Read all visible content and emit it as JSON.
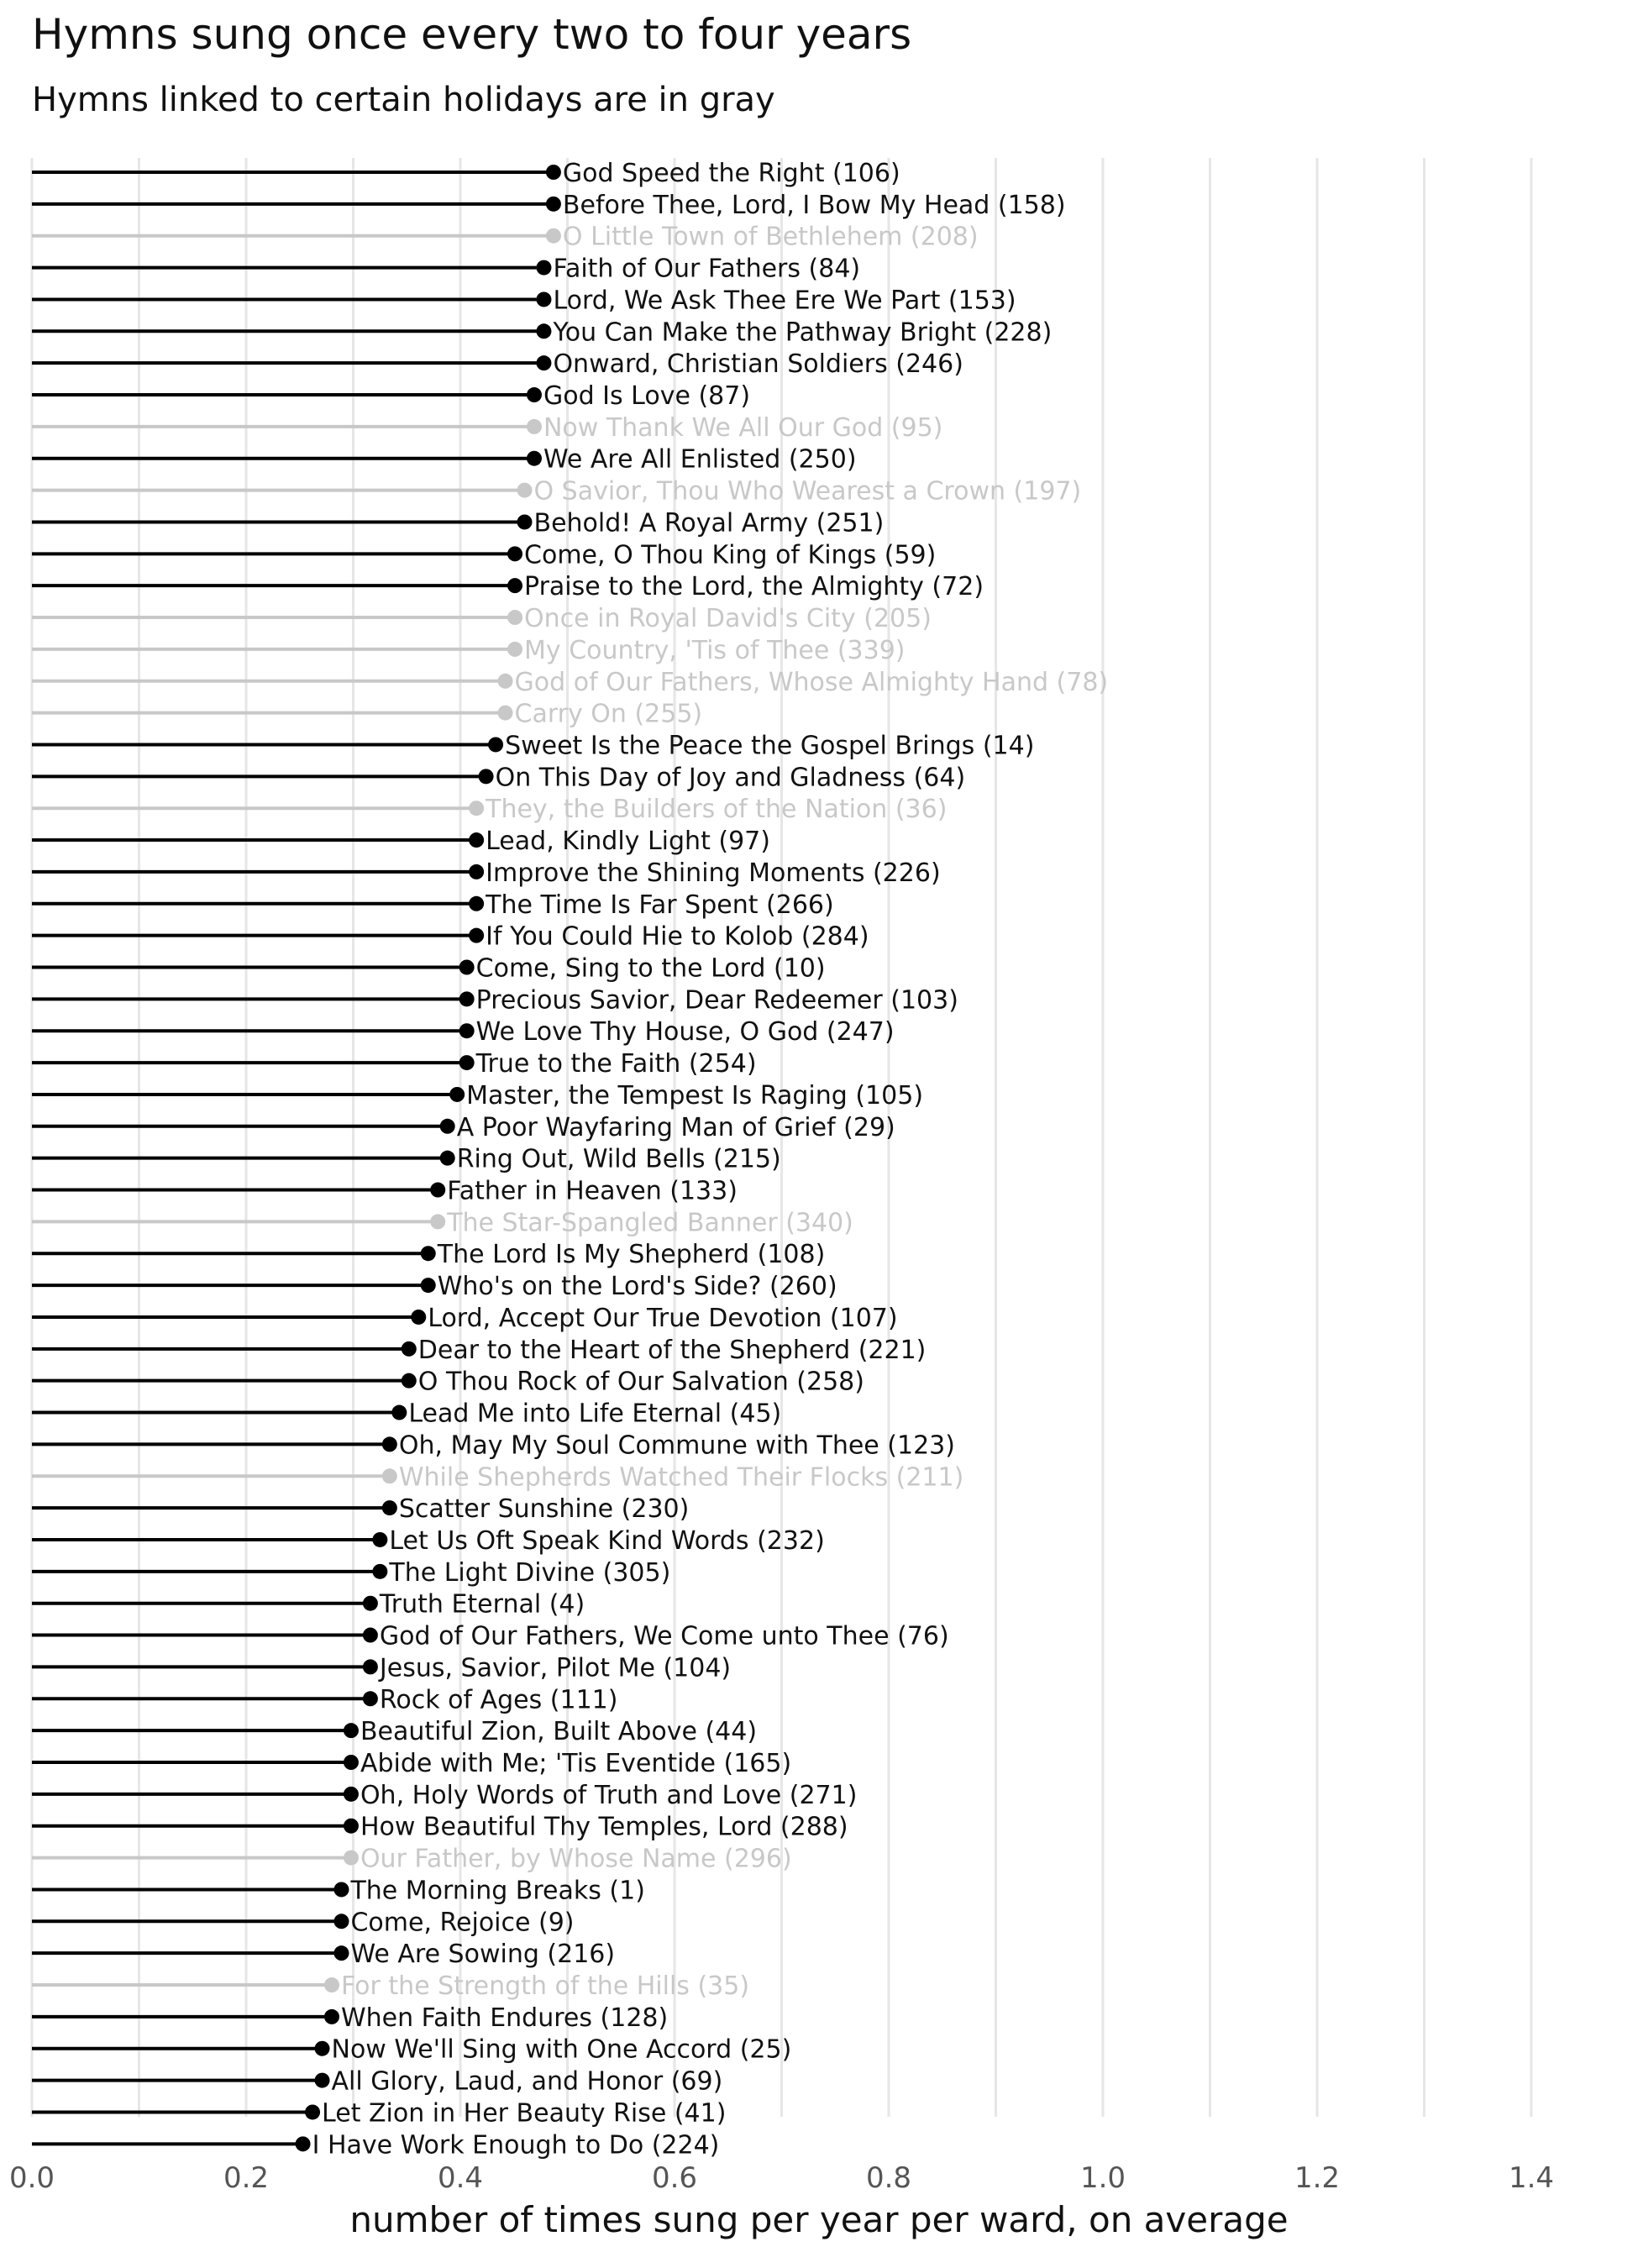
{
  "chart_data": {
    "type": "lollipop",
    "title": "Hymns sung once every two to four years",
    "subtitle": "Hymns linked to certain holidays are in gray",
    "xlabel": "number of times sung per year per ward, on average",
    "xlim": [
      0,
      1.45
    ],
    "x_ticks": [
      "0.0",
      "0.2",
      "0.4",
      "0.6",
      "0.8",
      "1.0",
      "1.2",
      "1.4"
    ],
    "x_tick_values": [
      0,
      0.2,
      0.4,
      0.6,
      0.8,
      1.0,
      1.2,
      1.4
    ],
    "colors": {
      "regular": "#000000",
      "holiday": "#c8c8c8",
      "grid": "#e6e6e6",
      "text": "#111111",
      "tick": "#555555"
    },
    "points": [
      {
        "label": "God Speed the Right (106)",
        "value": 0.487,
        "holiday": false
      },
      {
        "label": "Before Thee, Lord, I Bow My Head (158)",
        "value": 0.487,
        "holiday": false
      },
      {
        "label": "O Little Town of Bethlehem (208)",
        "value": 0.487,
        "holiday": true
      },
      {
        "label": "Faith of Our Fathers (84)",
        "value": 0.478,
        "holiday": false
      },
      {
        "label": "Lord, We Ask Thee Ere We Part (153)",
        "value": 0.478,
        "holiday": false
      },
      {
        "label": "You Can Make the Pathway Bright (228)",
        "value": 0.478,
        "holiday": false
      },
      {
        "label": "Onward, Christian Soldiers (246)",
        "value": 0.478,
        "holiday": false
      },
      {
        "label": "God Is Love (87)",
        "value": 0.469,
        "holiday": false
      },
      {
        "label": "Now Thank We All Our God (95)",
        "value": 0.469,
        "holiday": true
      },
      {
        "label": "We Are All Enlisted (250)",
        "value": 0.469,
        "holiday": false
      },
      {
        "label": "O Savior, Thou Who Wearest a Crown (197)",
        "value": 0.46,
        "holiday": true
      },
      {
        "label": "Behold! A Royal Army (251)",
        "value": 0.46,
        "holiday": false
      },
      {
        "label": "Come, O Thou King of Kings (59)",
        "value": 0.451,
        "holiday": false
      },
      {
        "label": "Praise to the Lord, the Almighty (72)",
        "value": 0.451,
        "holiday": false
      },
      {
        "label": "Once in Royal David's City (205)",
        "value": 0.451,
        "holiday": true
      },
      {
        "label": "My Country, 'Tis of Thee (339)",
        "value": 0.451,
        "holiday": true
      },
      {
        "label": "God of Our Fathers, Whose Almighty Hand (78)",
        "value": 0.442,
        "holiday": true
      },
      {
        "label": "Carry On (255)",
        "value": 0.442,
        "holiday": true
      },
      {
        "label": "Sweet Is the Peace the Gospel Brings (14)",
        "value": 0.433,
        "holiday": false
      },
      {
        "label": "On This Day of Joy and Gladness (64)",
        "value": 0.424,
        "holiday": false
      },
      {
        "label": "They, the Builders of the Nation (36)",
        "value": 0.415,
        "holiday": true
      },
      {
        "label": "Lead, Kindly Light (97)",
        "value": 0.415,
        "holiday": false
      },
      {
        "label": "Improve the Shining Moments (226)",
        "value": 0.415,
        "holiday": false
      },
      {
        "label": "The Time Is Far Spent (266)",
        "value": 0.415,
        "holiday": false
      },
      {
        "label": "If You Could Hie to Kolob (284)",
        "value": 0.415,
        "holiday": false
      },
      {
        "label": "Come, Sing to the Lord (10)",
        "value": 0.406,
        "holiday": false
      },
      {
        "label": "Precious Savior, Dear Redeemer (103)",
        "value": 0.406,
        "holiday": false
      },
      {
        "label": "We Love Thy House, O God (247)",
        "value": 0.406,
        "holiday": false
      },
      {
        "label": "True to the Faith (254)",
        "value": 0.406,
        "holiday": false
      },
      {
        "label": "Master, the Tempest Is Raging (105)",
        "value": 0.397,
        "holiday": false
      },
      {
        "label": "A Poor Wayfaring Man of Grief (29)",
        "value": 0.388,
        "holiday": false
      },
      {
        "label": "Ring Out, Wild Bells (215)",
        "value": 0.388,
        "holiday": false
      },
      {
        "label": "Father in Heaven (133)",
        "value": 0.379,
        "holiday": false
      },
      {
        "label": "The Star-Spangled Banner (340)",
        "value": 0.379,
        "holiday": true
      },
      {
        "label": "The Lord Is My Shepherd (108)",
        "value": 0.37,
        "holiday": false
      },
      {
        "label": "Who's on the Lord's Side? (260)",
        "value": 0.37,
        "holiday": false
      },
      {
        "label": "Lord, Accept Our True Devotion (107)",
        "value": 0.361,
        "holiday": false
      },
      {
        "label": "Dear to the Heart of the Shepherd (221)",
        "value": 0.352,
        "holiday": false
      },
      {
        "label": "O Thou Rock of Our Salvation (258)",
        "value": 0.352,
        "holiday": false
      },
      {
        "label": "Lead Me into Life Eternal (45)",
        "value": 0.343,
        "holiday": false
      },
      {
        "label": "Oh, May My Soul Commune with Thee (123)",
        "value": 0.334,
        "holiday": false
      },
      {
        "label": "While Shepherds Watched Their Flocks (211)",
        "value": 0.334,
        "holiday": true
      },
      {
        "label": "Scatter Sunshine (230)",
        "value": 0.334,
        "holiday": false
      },
      {
        "label": "Let Us Oft Speak Kind Words (232)",
        "value": 0.325,
        "holiday": false
      },
      {
        "label": "The Light Divine (305)",
        "value": 0.325,
        "holiday": false
      },
      {
        "label": "Truth Eternal (4)",
        "value": 0.316,
        "holiday": false
      },
      {
        "label": "God of Our Fathers, We Come unto Thee (76)",
        "value": 0.316,
        "holiday": false
      },
      {
        "label": "Jesus, Savior, Pilot Me (104)",
        "value": 0.316,
        "holiday": false
      },
      {
        "label": "Rock of Ages (111)",
        "value": 0.316,
        "holiday": false
      },
      {
        "label": "Beautiful Zion, Built Above (44)",
        "value": 0.298,
        "holiday": false
      },
      {
        "label": "Abide with Me; 'Tis Eventide (165)",
        "value": 0.298,
        "holiday": false
      },
      {
        "label": "Oh, Holy Words of Truth and Love (271)",
        "value": 0.298,
        "holiday": false
      },
      {
        "label": "How Beautiful Thy Temples, Lord (288)",
        "value": 0.298,
        "holiday": false
      },
      {
        "label": "Our Father, by Whose Name (296)",
        "value": 0.298,
        "holiday": true
      },
      {
        "label": "The Morning Breaks (1)",
        "value": 0.289,
        "holiday": false
      },
      {
        "label": "Come, Rejoice (9)",
        "value": 0.289,
        "holiday": false
      },
      {
        "label": "We Are Sowing (216)",
        "value": 0.289,
        "holiday": false
      },
      {
        "label": "For the Strength of the Hills (35)",
        "value": 0.28,
        "holiday": true
      },
      {
        "label": "When Faith Endures (128)",
        "value": 0.28,
        "holiday": false
      },
      {
        "label": "Now We'll Sing with One Accord (25)",
        "value": 0.271,
        "holiday": false
      },
      {
        "label": "All Glory, Laud, and Honor (69)",
        "value": 0.271,
        "holiday": false
      },
      {
        "label": "Let Zion in Her Beauty Rise (41)",
        "value": 0.262,
        "holiday": false
      },
      {
        "label": "I Have Work Enough to Do (224)",
        "value": 0.253,
        "holiday": false
      }
    ]
  }
}
